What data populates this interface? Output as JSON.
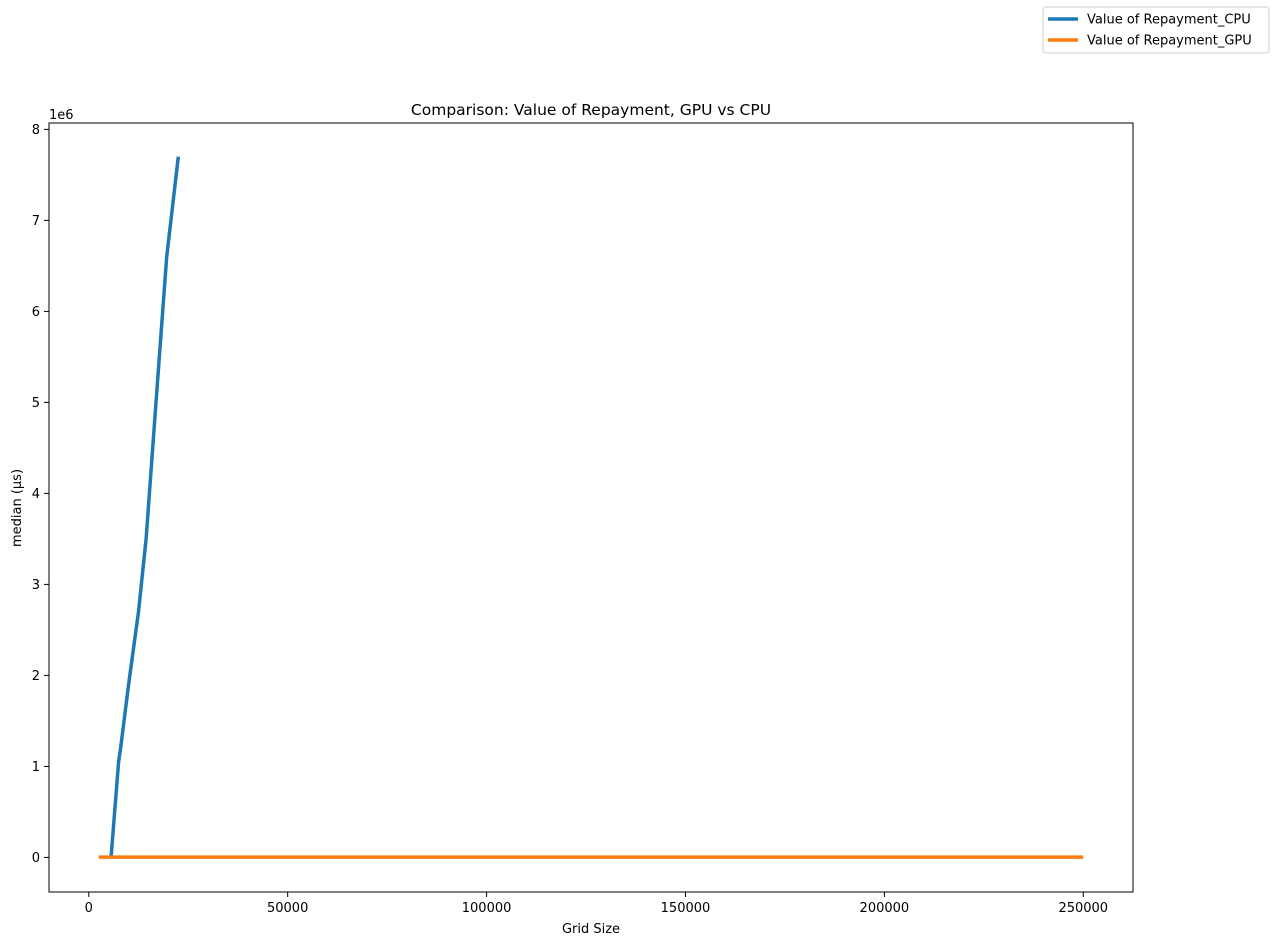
{
  "chart_data": {
    "type": "line",
    "title": "Comparison: Value of Repayment, GPU vs CPU",
    "xlabel": "Grid Size",
    "ylabel": "median (µs)",
    "y_offset_label": "1e6",
    "xlim": [
      -10000,
      262500
    ],
    "ylim": [
      -0.38,
      8.07
    ],
    "y_scale_note": "values in units of 1e6",
    "xticks": [
      0,
      50000,
      100000,
      150000,
      200000,
      250000
    ],
    "xtick_labels": [
      "0",
      "50000",
      "100000",
      "150000",
      "200000",
      "250000"
    ],
    "yticks": [
      0,
      1,
      2,
      3,
      4,
      5,
      6,
      7,
      8
    ],
    "ytick_labels": [
      "0",
      "1",
      "2",
      "3",
      "4",
      "5",
      "6",
      "7",
      "8"
    ],
    "grid": false,
    "legend_placement": "top-right (outside axes)",
    "series": [
      {
        "name": "Value of Repayment_CPU",
        "color": "#1f77b4",
        "x": [
          5625,
          7500,
          8000,
          10000,
          12500,
          14400,
          16900,
          19600,
          22500
        ],
        "y": [
          0.02,
          1.05,
          1.2,
          1.9,
          2.7,
          3.5,
          5.0,
          6.6,
          7.7
        ]
      },
      {
        "name": "Value of Repayment_GPU",
        "color": "#ff7f0e",
        "x": [
          2500,
          10000,
          22500,
          40000,
          62500,
          90000,
          122500,
          160000,
          202500,
          250000
        ],
        "y": [
          0.003,
          0.003,
          0.003,
          0.003,
          0.003,
          0.003,
          0.003,
          0.003,
          0.003,
          0.003
        ]
      }
    ]
  }
}
